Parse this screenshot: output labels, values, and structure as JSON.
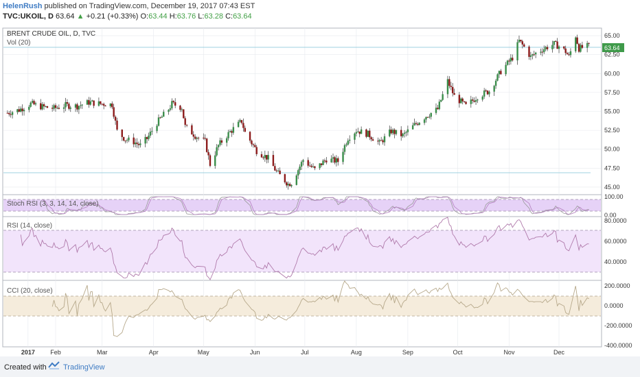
{
  "header": {
    "author": "HelenRush",
    "published": "published on TradingView.com, December 19, 2017 07:43 EST",
    "symbol": "TVC:UKOIL, D",
    "last": "63.64",
    "change": "+0.21 (+0.33%)",
    "o_label": "O:",
    "o_val": "63.44",
    "h_label": "H:",
    "h_val": "63.76",
    "l_label": "L:",
    "l_val": "63.28",
    "c_label": "C:",
    "c_val": "63.64"
  },
  "panes": {
    "price_title": "BRENT CRUDE OIL, D, TVC",
    "vol_label": "Vol (20)",
    "stoch_label": "Stoch RSI (3, 3, 14, 14, close)",
    "rsi_label": "RSI (14, close)",
    "cci_label": "CCI (20, close)",
    "last_price_tag": "63.64"
  },
  "price_axis": [
    "65.00",
    "62.50",
    "60.00",
    "57.50",
    "55.00",
    "52.50",
    "50.00",
    "47.50",
    "45.00"
  ],
  "stoch_axis": [
    "100.00",
    "0.00"
  ],
  "rsi_axis": [
    "80.0000",
    "60.0000",
    "40.0000"
  ],
  "cci_axis": [
    "200.0000",
    "0.0000",
    "-200.0000",
    "-400.0000"
  ],
  "time_axis": [
    "2017",
    "Feb",
    "Mar",
    "Apr",
    "May",
    "Jun",
    "Jul",
    "Aug",
    "Sep",
    "Oct",
    "Nov",
    "Dec"
  ],
  "footer": {
    "created": "Created with",
    "brand": "TradingView"
  },
  "colors": {
    "up": "#3a8d4a",
    "down": "#8c1b1b",
    "rsi_band": "#eedcfb",
    "cci_band": "#f3ead9",
    "grid": "#e6e9ee"
  },
  "chart_data": {
    "type": "candlestick",
    "title": "BRENT CRUDE OIL, D, TVC",
    "ylim": [
      44,
      66
    ],
    "close_path": [
      {
        "x": "2017-01-03",
        "y": 54.8
      },
      {
        "x": "2017-01-10",
        "y": 55.2
      },
      {
        "x": "2017-01-17",
        "y": 56.0
      },
      {
        "x": "2017-01-24",
        "y": 55.6
      },
      {
        "x": "2017-01-31",
        "y": 55.4
      },
      {
        "x": "2017-02-07",
        "y": 55.8
      },
      {
        "x": "2017-02-14",
        "y": 55.7
      },
      {
        "x": "2017-02-21",
        "y": 56.2
      },
      {
        "x": "2017-02-28",
        "y": 56.0
      },
      {
        "x": "2017-03-03",
        "y": 56.0
      },
      {
        "x": "2017-03-07",
        "y": 55.9
      },
      {
        "x": "2017-03-10",
        "y": 52.4
      },
      {
        "x": "2017-03-15",
        "y": 51.3
      },
      {
        "x": "2017-03-20",
        "y": 51.0
      },
      {
        "x": "2017-03-24",
        "y": 50.5
      },
      {
        "x": "2017-03-28",
        "y": 51.4
      },
      {
        "x": "2017-04-03",
        "y": 53.5
      },
      {
        "x": "2017-04-10",
        "y": 55.3
      },
      {
        "x": "2017-04-12",
        "y": 56.0
      },
      {
        "x": "2017-04-18",
        "y": 55.5
      },
      {
        "x": "2017-04-20",
        "y": 53.0
      },
      {
        "x": "2017-04-26",
        "y": 51.8
      },
      {
        "x": "2017-05-02",
        "y": 51.0
      },
      {
        "x": "2017-05-05",
        "y": 48.0
      },
      {
        "x": "2017-05-10",
        "y": 50.5
      },
      {
        "x": "2017-05-17",
        "y": 52.3
      },
      {
        "x": "2017-05-24",
        "y": 53.7
      },
      {
        "x": "2017-05-26",
        "y": 52.2
      },
      {
        "x": "2017-06-02",
        "y": 49.8
      },
      {
        "x": "2017-06-09",
        "y": 48.8
      },
      {
        "x": "2017-06-14",
        "y": 47.0
      },
      {
        "x": "2017-06-21",
        "y": 45.4
      },
      {
        "x": "2017-06-23",
        "y": 45.6
      },
      {
        "x": "2017-06-30",
        "y": 48.6
      },
      {
        "x": "2017-07-07",
        "y": 47.3
      },
      {
        "x": "2017-07-14",
        "y": 48.7
      },
      {
        "x": "2017-07-21",
        "y": 48.4
      },
      {
        "x": "2017-07-27",
        "y": 51.5
      },
      {
        "x": "2017-08-01",
        "y": 52.5
      },
      {
        "x": "2017-08-08",
        "y": 52.0
      },
      {
        "x": "2017-08-15",
        "y": 50.8
      },
      {
        "x": "2017-08-22",
        "y": 52.4
      },
      {
        "x": "2017-08-29",
        "y": 51.8
      },
      {
        "x": "2017-09-05",
        "y": 53.2
      },
      {
        "x": "2017-09-12",
        "y": 54.4
      },
      {
        "x": "2017-09-19",
        "y": 55.3
      },
      {
        "x": "2017-09-25",
        "y": 59.0
      },
      {
        "x": "2017-09-29",
        "y": 57.0
      },
      {
        "x": "2017-10-06",
        "y": 55.7
      },
      {
        "x": "2017-10-13",
        "y": 57.0
      },
      {
        "x": "2017-10-20",
        "y": 57.7
      },
      {
        "x": "2017-10-27",
        "y": 60.3
      },
      {
        "x": "2017-11-03",
        "y": 62.1
      },
      {
        "x": "2017-11-07",
        "y": 64.3
      },
      {
        "x": "2017-11-10",
        "y": 63.5
      },
      {
        "x": "2017-11-14",
        "y": 62.2
      },
      {
        "x": "2017-11-17",
        "y": 62.7
      },
      {
        "x": "2017-11-22",
        "y": 63.3
      },
      {
        "x": "2017-11-28",
        "y": 63.9
      },
      {
        "x": "2017-12-01",
        "y": 63.6
      },
      {
        "x": "2017-12-05",
        "y": 62.9
      },
      {
        "x": "2017-12-07",
        "y": 62.2
      },
      {
        "x": "2017-12-11",
        "y": 65.0
      },
      {
        "x": "2017-12-13",
        "y": 63.3
      },
      {
        "x": "2017-12-19",
        "y": 63.64
      }
    ]
  }
}
